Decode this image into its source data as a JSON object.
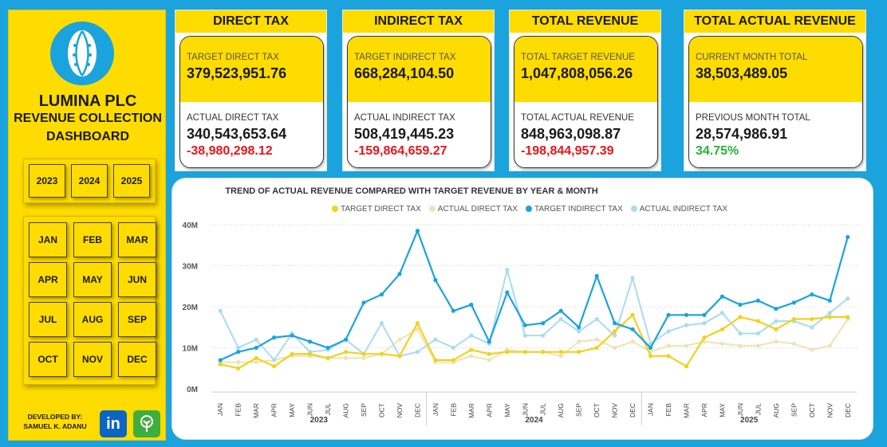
{
  "sidebar": {
    "brand_line1": "LUMINA PLC",
    "brand_line2": "REVENUE COLLECTION",
    "brand_line3": "DASHBOARD",
    "years": [
      "2023",
      "2024",
      "2025"
    ],
    "months": [
      "JAN",
      "FEB",
      "MAR",
      "APR",
      "MAY",
      "JUN",
      "JUL",
      "AUG",
      "SEP",
      "OCT",
      "NOV",
      "DEC"
    ],
    "developed_by_line1": "DEVELOPED BY:",
    "developed_by_line2": "SAMUEL K. ADANU",
    "linkedin_icon": "linkedin-icon",
    "linktree_icon": "linktree-icon"
  },
  "kpis": {
    "direct": {
      "title": "DIRECT TAX",
      "target_label": "TARGET DIRECT TAX",
      "target_value": "379,523,951.76",
      "actual_label": "ACTUAL DIRECT TAX",
      "actual_value": "340,543,653.64",
      "variance": "-38,980,298.12"
    },
    "indirect": {
      "title": "INDIRECT TAX",
      "target_label": "TARGET INDIRECT TAX",
      "target_value": "668,284,104.50",
      "actual_label": "ACTUAL INDIRECT TAX",
      "actual_value": "508,419,445.23",
      "variance": "-159,864,659.27"
    },
    "total": {
      "title": "TOTAL REVENUE",
      "target_label": "TOTAL TARGET REVENUE",
      "target_value": "1,047,808,056.26",
      "actual_label": "TOTAL ACTUAL REVENUE",
      "actual_value": "848,963,098.87",
      "variance": "-198,844,957.39"
    },
    "actual": {
      "title": "TOTAL ACTUAL REVENUE",
      "target_label": "CURRENT MONTH TOTAL",
      "target_value": "38,503,489.05",
      "actual_label": "PREVIOUS MONTH TOTAL",
      "actual_value": "28,574,986.91",
      "variance": "34.75%"
    }
  },
  "colors": {
    "target_direct": "#f2d21b",
    "actual_direct": "#efe3b3",
    "target_indirect": "#1ba3dd",
    "actual_indirect": "#a9dcef",
    "negative": "#e8161b",
    "positive": "#23b33a"
  },
  "chart_data": {
    "type": "line",
    "title": "TREND OF ACTUAL REVENUE COMPARED WITH TARGET REVENUE BY YEAR & MONTH",
    "legend_position": "top",
    "ylim": [
      0,
      40
    ],
    "y_ticks": [
      "0M",
      "10M",
      "20M",
      "30M",
      "40M"
    ],
    "years": [
      "2023",
      "2024",
      "2025"
    ],
    "months": [
      "JAN",
      "FEB",
      "MAR",
      "APR",
      "MAY",
      "JUN",
      "JUL",
      "AUG",
      "SEP",
      "OCT",
      "NOV",
      "DEC"
    ],
    "unit": "M",
    "grid": true,
    "series": [
      {
        "name": "TARGET DIRECT TAX",
        "values": [
          6,
          5,
          7.5,
          5.5,
          8.5,
          8.5,
          7.5,
          9,
          8.5,
          8.5,
          8,
          16,
          7,
          7,
          9.5,
          8.5,
          9,
          9,
          9,
          9,
          9,
          10,
          14,
          18,
          8,
          8,
          5.5,
          12.5,
          14.5,
          17.5,
          16.5,
          14.5,
          17,
          17,
          17.5,
          17.5
        ]
      },
      {
        "name": "ACTUAL DIRECT TAX",
        "values": [
          6.5,
          6.5,
          6.5,
          7,
          8,
          8,
          7.5,
          7.5,
          7.5,
          8.5,
          12,
          14.5,
          6.5,
          6.5,
          8,
          7,
          9.5,
          9,
          9,
          8,
          11.5,
          12,
          10,
          11.5,
          9,
          10.5,
          10.5,
          11.5,
          11,
          10.5,
          10.5,
          11.5,
          11,
          9.5,
          10.5,
          17
        ]
      },
      {
        "name": "TARGET INDIRECT TAX",
        "values": [
          7,
          9,
          10,
          12.5,
          13,
          11.5,
          10,
          12,
          21,
          23,
          28,
          38.5,
          26.5,
          19,
          20.5,
          11.5,
          23.5,
          15.5,
          16,
          19,
          15,
          27.5,
          16,
          14.5,
          10,
          18,
          18,
          18,
          22.5,
          20.5,
          21.5,
          19.5,
          21,
          23,
          21.5,
          37
        ]
      },
      {
        "name": "ACTUAL INDIRECT TAX",
        "values": [
          19,
          10,
          12,
          7,
          13.5,
          9,
          9.5,
          12,
          8.5,
          16,
          8,
          9,
          12,
          10,
          13,
          11,
          29,
          13,
          13,
          17,
          14,
          17,
          13,
          27,
          11,
          14,
          15.5,
          16,
          18.5,
          13.5,
          13.5,
          16.5,
          16.5,
          15,
          18.5,
          22
        ]
      }
    ]
  }
}
